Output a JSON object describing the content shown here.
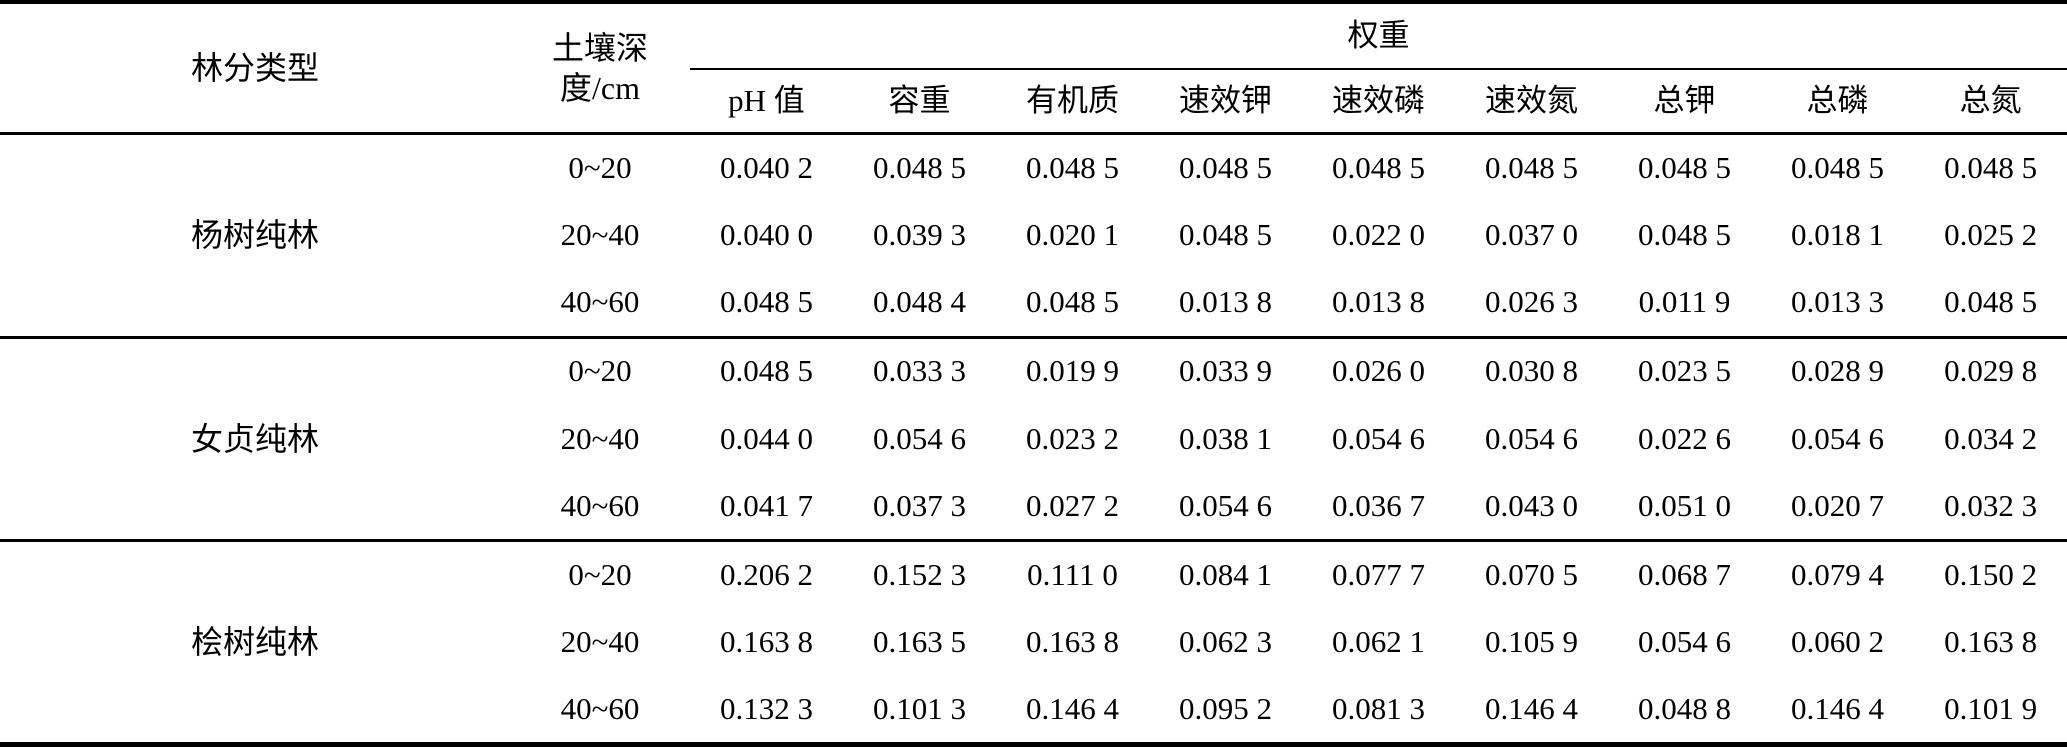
{
  "table": {
    "header": {
      "forest_type": "林分类型",
      "soil_depth_line1": "土壤深",
      "soil_depth_line2": "度/cm",
      "weight_group": "权重",
      "indicators": [
        "pH 值",
        "容重",
        "有机质",
        "速效钾",
        "速效磷",
        "速效氮",
        "总钾",
        "总磷",
        "总氮"
      ]
    },
    "groups": [
      {
        "name": "杨树纯林",
        "rows": [
          {
            "depth": "0~20",
            "values": [
              "0.040 2",
              "0.048 5",
              "0.048 5",
              "0.048 5",
              "0.048 5",
              "0.048 5",
              "0.048 5",
              "0.048 5",
              "0.048 5"
            ]
          },
          {
            "depth": "20~40",
            "values": [
              "0.040 0",
              "0.039 3",
              "0.020 1",
              "0.048 5",
              "0.022 0",
              "0.037 0",
              "0.048 5",
              "0.018 1",
              "0.025 2"
            ]
          },
          {
            "depth": "40~60",
            "values": [
              "0.048 5",
              "0.048 4",
              "0.048 5",
              "0.013 8",
              "0.013 8",
              "0.026 3",
              "0.011 9",
              "0.013 3",
              "0.048 5"
            ]
          }
        ]
      },
      {
        "name": "女贞纯林",
        "rows": [
          {
            "depth": "0~20",
            "values": [
              "0.048 5",
              "0.033 3",
              "0.019 9",
              "0.033 9",
              "0.026 0",
              "0.030 8",
              "0.023 5",
              "0.028 9",
              "0.029 8"
            ]
          },
          {
            "depth": "20~40",
            "values": [
              "0.044 0",
              "0.054 6",
              "0.023 2",
              "0.038 1",
              "0.054 6",
              "0.054 6",
              "0.022 6",
              "0.054 6",
              "0.034 2"
            ]
          },
          {
            "depth": "40~60",
            "values": [
              "0.041 7",
              "0.037 3",
              "0.027 2",
              "0.054 6",
              "0.036 7",
              "0.043 0",
              "0.051 0",
              "0.020 7",
              "0.032 3"
            ]
          }
        ]
      },
      {
        "name": "桧树纯林",
        "rows": [
          {
            "depth": "0~20",
            "values": [
              "0.206 2",
              "0.152 3",
              "0.111 0",
              "0.084 1",
              "0.077 7",
              "0.070 5",
              "0.068 7",
              "0.079 4",
              "0.150 2"
            ]
          },
          {
            "depth": "20~40",
            "values": [
              "0.163 8",
              "0.163 5",
              "0.163 8",
              "0.062 3",
              "0.062 1",
              "0.105 9",
              "0.054 6",
              "0.060 2",
              "0.163 8"
            ]
          },
          {
            "depth": "40~60",
            "values": [
              "0.132 3",
              "0.101 3",
              "0.146 4",
              "0.095 2",
              "0.081 3",
              "0.146 4",
              "0.048 8",
              "0.146 4",
              "0.101 9"
            ]
          }
        ]
      }
    ],
    "colors": {
      "rule": "#000000",
      "background": "#ffffff",
      "text": "#000000"
    }
  },
  "chart_data": {
    "type": "table",
    "title": "",
    "column_headers": [
      "林分类型",
      "土壤深度/cm",
      "pH 值",
      "容重",
      "有机质",
      "速效钾",
      "速效磷",
      "速效氮",
      "总钾",
      "总磷",
      "总氮"
    ],
    "spanning_header": {
      "label": "权重",
      "covers": [
        "pH 值",
        "容重",
        "有机质",
        "速效钾",
        "速效磷",
        "速效氮",
        "总钾",
        "总磷",
        "总氮"
      ]
    },
    "rows": [
      [
        "杨树纯林",
        "0~20",
        0.0402,
        0.0485,
        0.0485,
        0.0485,
        0.0485,
        0.0485,
        0.0485,
        0.0485,
        0.0485
      ],
      [
        "杨树纯林",
        "20~40",
        0.04,
        0.0393,
        0.0201,
        0.0485,
        0.022,
        0.037,
        0.0485,
        0.0181,
        0.0252
      ],
      [
        "杨树纯林",
        "40~60",
        0.0485,
        0.0484,
        0.0485,
        0.0138,
        0.0138,
        0.0263,
        0.0119,
        0.0133,
        0.0485
      ],
      [
        "女贞纯林",
        "0~20",
        0.0485,
        0.0333,
        0.0199,
        0.0339,
        0.026,
        0.0308,
        0.0235,
        0.0289,
        0.0298
      ],
      [
        "女贞纯林",
        "20~40",
        0.044,
        0.0546,
        0.0232,
        0.0381,
        0.0546,
        0.0546,
        0.0226,
        0.0546,
        0.0342
      ],
      [
        "女贞纯林",
        "40~60",
        0.0417,
        0.0373,
        0.0272,
        0.0546,
        0.0367,
        0.043,
        0.051,
        0.0207,
        0.0323
      ],
      [
        "桧树纯林",
        "0~20",
        0.2062,
        0.1523,
        0.111,
        0.0841,
        0.0777,
        0.0705,
        0.0687,
        0.0794,
        0.1502
      ],
      [
        "桧树纯林",
        "20~40",
        0.1638,
        0.1635,
        0.1638,
        0.0623,
        0.0621,
        0.1059,
        0.0546,
        0.0602,
        0.1638
      ],
      [
        "桧树纯林",
        "40~60",
        0.1323,
        0.1013,
        0.1464,
        0.0952,
        0.0813,
        0.1464,
        0.0488,
        0.1464,
        0.1019
      ]
    ]
  }
}
